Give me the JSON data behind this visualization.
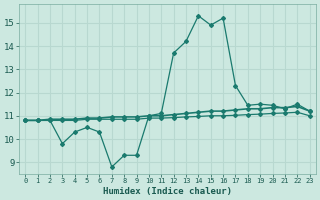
{
  "xlabel": "Humidex (Indice chaleur)",
  "bg_color": "#cce8e0",
  "grid_color": "#b8d8d0",
  "line_color": "#1a7a6e",
  "x_ticks": [
    0,
    1,
    2,
    3,
    4,
    5,
    6,
    7,
    8,
    9,
    10,
    11,
    12,
    13,
    14,
    15,
    16,
    17,
    18,
    19,
    20,
    21,
    22,
    23
  ],
  "y_ticks": [
    9,
    10,
    11,
    12,
    13,
    14,
    15
  ],
  "ylim": [
    8.5,
    15.8
  ],
  "xlim": [
    -0.5,
    23.5
  ],
  "series1_x": [
    0,
    1,
    2,
    3,
    4,
    5,
    6,
    7,
    8,
    9,
    10,
    11,
    12,
    13,
    14,
    15,
    16,
    17,
    18,
    19,
    20,
    21,
    22,
    23
  ],
  "series1_y": [
    10.8,
    10.8,
    10.8,
    9.8,
    10.3,
    10.5,
    10.3,
    8.8,
    9.3,
    9.3,
    11.0,
    11.1,
    13.7,
    14.2,
    15.3,
    14.9,
    15.2,
    12.3,
    11.45,
    11.5,
    11.45,
    11.3,
    11.5,
    11.2
  ],
  "series2_x": [
    0,
    1,
    2,
    3,
    4,
    5,
    6,
    7,
    8,
    9,
    10,
    11,
    12,
    13,
    14,
    15,
    16,
    17,
    18,
    19,
    20,
    21,
    22,
    23
  ],
  "series2_y": [
    10.8,
    10.8,
    10.85,
    10.85,
    10.85,
    10.9,
    10.9,
    10.95,
    10.95,
    10.95,
    11.0,
    11.0,
    11.05,
    11.1,
    11.15,
    11.2,
    11.2,
    11.25,
    11.3,
    11.3,
    11.35,
    11.35,
    11.4,
    11.2
  ],
  "series3_x": [
    0,
    1,
    2,
    3,
    4,
    5,
    6,
    7,
    8,
    9,
    10,
    11,
    12,
    13,
    14,
    15,
    16,
    17,
    18,
    19,
    20,
    21,
    22,
    23
  ],
  "series3_y": [
    10.8,
    10.8,
    10.8,
    10.8,
    10.8,
    10.85,
    10.85,
    10.85,
    10.85,
    10.85,
    10.9,
    10.9,
    10.92,
    10.95,
    10.97,
    11.0,
    11.0,
    11.02,
    11.05,
    11.07,
    11.1,
    11.12,
    11.15,
    11.0
  ]
}
